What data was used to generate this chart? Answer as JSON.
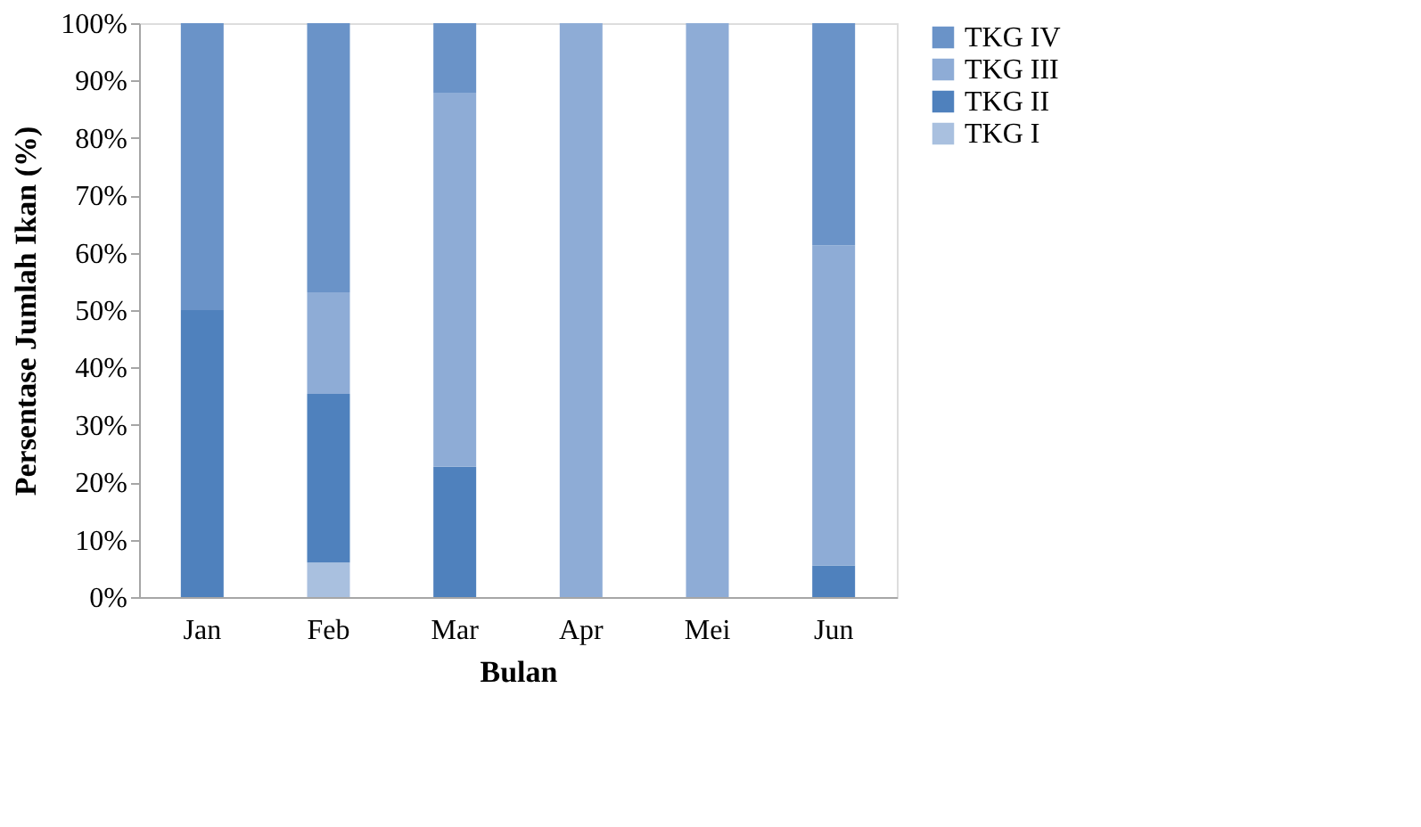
{
  "chart_data": {
    "type": "bar",
    "stacked": true,
    "xlabel": "Bulan",
    "ylabel": "Persentase Jumlah Ikan (%)",
    "categories": [
      "Jan",
      "Feb",
      "Mar",
      "Apr",
      "Mei",
      "Jun"
    ],
    "series": [
      {
        "name": "TKG I",
        "color": "#a9c0df",
        "values": [
          0,
          6,
          0,
          0,
          0,
          0
        ]
      },
      {
        "name": "TKG II",
        "color": "#4f81bd",
        "values": [
          50,
          29.4,
          22.7,
          0,
          0,
          5.5
        ]
      },
      {
        "name": "TKG III",
        "color": "#8eacd6",
        "values": [
          0,
          17.7,
          65.2,
          100,
          100,
          55.8
        ]
      },
      {
        "name": "TKG IV",
        "color": "#6a93c8",
        "values": [
          50,
          46.9,
          12.1,
          0,
          0,
          38.7
        ]
      }
    ],
    "ylim": [
      0,
      100
    ],
    "yticks": [
      {
        "value": 0,
        "label": "0%"
      },
      {
        "value": 10,
        "label": "10%"
      },
      {
        "value": 20,
        "label": "20%"
      },
      {
        "value": 30,
        "label": "30%"
      },
      {
        "value": 40,
        "label": "40%"
      },
      {
        "value": 50,
        "label": "50%"
      },
      {
        "value": 60,
        "label": "60%"
      },
      {
        "value": 70,
        "label": "70%"
      },
      {
        "value": 80,
        "label": "80%"
      },
      {
        "value": 90,
        "label": "90%"
      },
      {
        "value": 100,
        "label": "100%"
      }
    ],
    "grid": false,
    "legend": "right"
  }
}
